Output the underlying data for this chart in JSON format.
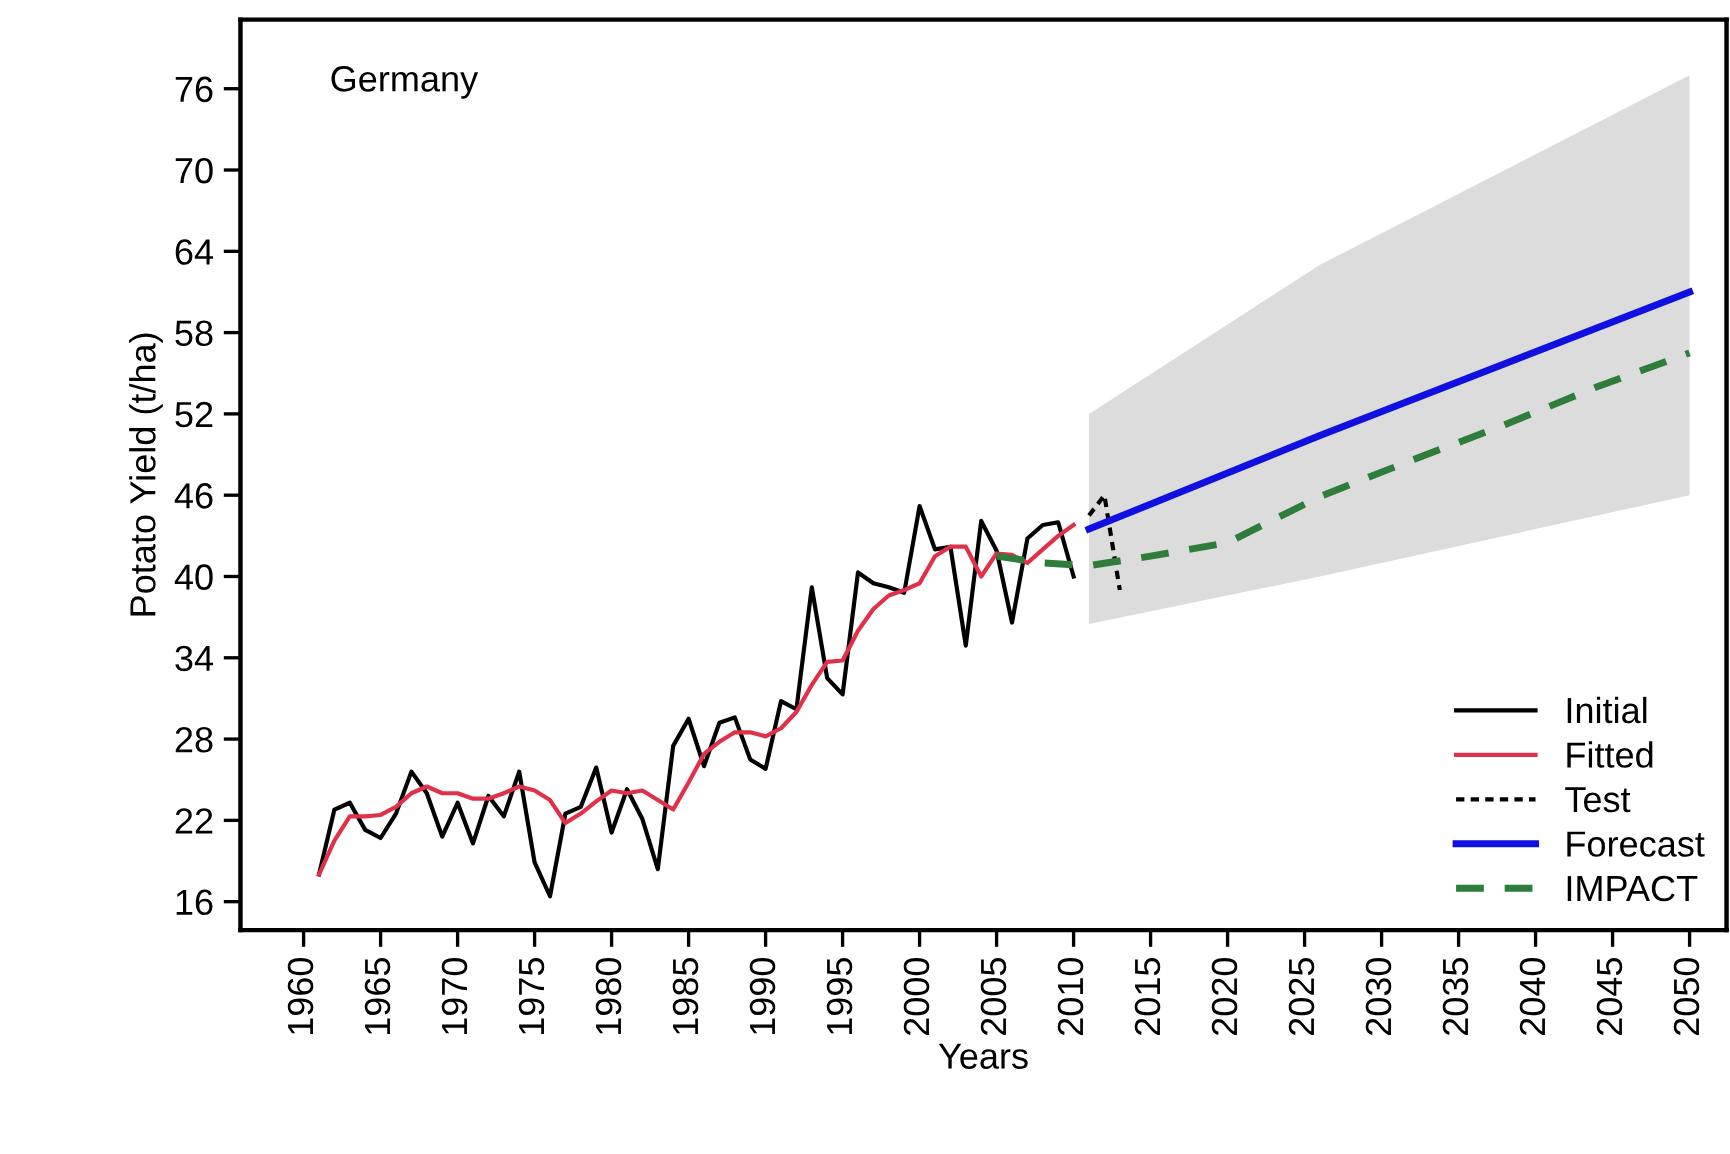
{
  "chart_data": {
    "type": "line",
    "xlabel": "Years",
    "ylabel": "Potato Yield (t/ha)",
    "annotations": [
      "Germany"
    ],
    "xlim": [
      1955.9,
      2052.4
    ],
    "ylim": [
      13.9,
      81.1
    ],
    "xticks": [
      1960,
      1965,
      1970,
      1975,
      1980,
      1985,
      1990,
      1995,
      2000,
      2005,
      2010,
      2015,
      2020,
      2025,
      2030,
      2035,
      2040,
      2045,
      2050
    ],
    "yticks": [
      16,
      22,
      28,
      34,
      40,
      46,
      52,
      58,
      64,
      70,
      76
    ],
    "grid": false,
    "legend": "bottom right",
    "marker": "none",
    "series": [
      {
        "name": "Initial",
        "color": "#000000",
        "line_style": "solid",
        "x": [
          1961,
          1962,
          1963,
          1964,
          1965,
          1966,
          1967,
          1968,
          1969,
          1970,
          1971,
          1972,
          1973,
          1974,
          1975,
          1976,
          1977,
          1978,
          1979,
          1980,
          1981,
          1982,
          1983,
          1984,
          1985,
          1986,
          1987,
          1988,
          1989,
          1990,
          1991,
          1992,
          1993,
          1994,
          1995,
          1996,
          1997,
          1998,
          1999,
          2000,
          2001,
          2002,
          2003,
          2004,
          2005,
          2006,
          2007,
          2008,
          2009,
          2010
        ],
        "values": [
          18,
          22.8,
          23.3,
          21.3,
          20.7,
          22.5,
          25.6,
          24,
          20.8,
          23.3,
          20.3,
          23.8,
          22.3,
          25.6,
          18.9,
          16.4,
          22.5,
          23,
          25.9,
          21.1,
          24.3,
          22.1,
          18.4,
          27.5,
          29.5,
          26,
          29.2,
          29.6,
          26.5,
          25.8,
          30.8,
          30.2,
          39.2,
          32.5,
          31.3,
          40.3,
          39.5,
          39.2,
          38.8,
          45.2,
          42,
          42.2,
          34.9,
          44.1,
          41.9,
          36.6,
          42.8,
          43.8,
          44,
          40
        ]
      },
      {
        "name": "Fitted",
        "color": "#e0304a",
        "line_style": "solid",
        "x": [
          1961,
          1962,
          1963,
          1964,
          1965,
          1966,
          1967,
          1968,
          1969,
          1970,
          1971,
          1972,
          1973,
          1974,
          1975,
          1976,
          1977,
          1978,
          1979,
          1980,
          1981,
          1982,
          1983,
          1984,
          1985,
          1986,
          1987,
          1988,
          1989,
          1990,
          1991,
          1992,
          1993,
          1994,
          1995,
          1996,
          1997,
          1998,
          1999,
          2000,
          2001,
          2002,
          2003,
          2004,
          2005,
          2006,
          2007,
          2008,
          2009,
          2010
        ],
        "values": [
          18,
          20.5,
          22.3,
          22.3,
          22.4,
          23,
          24,
          24.5,
          24,
          24,
          23.6,
          23.6,
          24,
          24.5,
          24.2,
          23.5,
          21.8,
          22.5,
          23.4,
          24.2,
          24,
          24.2,
          23.5,
          22.8,
          24.8,
          26.9,
          27.8,
          28.5,
          28.5,
          28.2,
          28.8,
          30,
          32,
          33.7,
          33.8,
          36,
          37.6,
          38.6,
          39,
          39.5,
          41.5,
          42.2,
          42.2,
          40,
          41.7,
          41.6,
          41,
          42,
          43,
          43.8
        ]
      },
      {
        "name": "Test",
        "color": "#000000",
        "line_style": "dotted",
        "x": [
          2011,
          2012,
          2013
        ],
        "values": [
          44.5,
          46,
          39
        ]
      },
      {
        "name": "Forecast",
        "color": "#1010e0",
        "line_style": "solid",
        "x": [
          2011,
          2026,
          2050
        ],
        "values": [
          43.5,
          50.4,
          61
        ],
        "lower": [
          36.5,
          40,
          46
        ],
        "upper": [
          52,
          63,
          77
        ]
      },
      {
        "name": "IMPACT",
        "color": "#2e7d3a",
        "line_style": "dashed",
        "x": [
          2005,
          2008,
          2011,
          2015,
          2020,
          2026,
          2032,
          2038,
          2044,
          2050
        ],
        "values": [
          41.5,
          41,
          40.8,
          41.5,
          42.5,
          45.9,
          48.6,
          51.2,
          54,
          56.5
        ]
      }
    ]
  }
}
